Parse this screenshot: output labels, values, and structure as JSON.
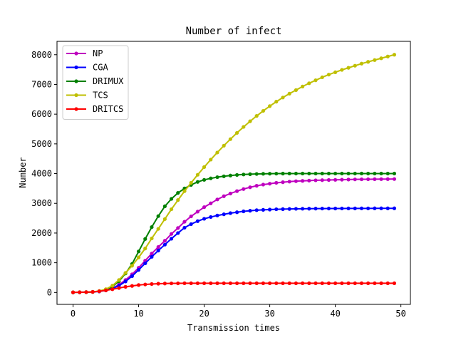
{
  "chart_data": {
    "type": "line",
    "title": "Number of infect",
    "xlabel": "Transmission times",
    "ylabel": "Number",
    "xlim": [
      -2.45,
      51.45
    ],
    "ylim": [
      -400,
      8450
    ],
    "xticks": [
      0,
      10,
      20,
      30,
      40,
      50
    ],
    "yticks": [
      0,
      1000,
      2000,
      3000,
      4000,
      5000,
      6000,
      7000,
      8000
    ],
    "grid": false,
    "legend_position": "top-left",
    "x": [
      0,
      1,
      2,
      3,
      4,
      5,
      6,
      7,
      8,
      9,
      10,
      11,
      12,
      13,
      14,
      15,
      16,
      17,
      18,
      19,
      20,
      21,
      22,
      23,
      24,
      25,
      26,
      27,
      28,
      29,
      30,
      31,
      32,
      33,
      34,
      35,
      36,
      37,
      38,
      39,
      40,
      41,
      42,
      43,
      44,
      45,
      46,
      47,
      48,
      49
    ],
    "series": [
      {
        "name": "NP",
        "color": "#bf00bf",
        "values": [
          5,
          8,
          12,
          20,
          40,
          80,
          150,
          260,
          420,
          610,
          830,
          1070,
          1310,
          1530,
          1740,
          1970,
          2170,
          2380,
          2560,
          2720,
          2870,
          3000,
          3130,
          3240,
          3330,
          3410,
          3480,
          3540,
          3590,
          3630,
          3660,
          3690,
          3710,
          3730,
          3745,
          3755,
          3765,
          3775,
          3780,
          3785,
          3790,
          3795,
          3800,
          3805,
          3808,
          3810,
          3812,
          3814,
          3815,
          3817
        ]
      },
      {
        "name": "CGA",
        "color": "#0000ff",
        "values": [
          5,
          8,
          12,
          18,
          35,
          70,
          130,
          230,
          370,
          550,
          760,
          980,
          1200,
          1410,
          1610,
          1810,
          2000,
          2180,
          2300,
          2400,
          2480,
          2540,
          2590,
          2630,
          2670,
          2700,
          2730,
          2750,
          2770,
          2780,
          2790,
          2800,
          2805,
          2810,
          2815,
          2818,
          2820,
          2822,
          2824,
          2825,
          2826,
          2827,
          2828,
          2829,
          2830,
          2830,
          2831,
          2831,
          2832,
          2832
        ]
      },
      {
        "name": "DRIMUX",
        "color": "#008000",
        "values": [
          5,
          8,
          12,
          20,
          45,
          100,
          200,
          380,
          640,
          960,
          1380,
          1800,
          2200,
          2570,
          2900,
          3150,
          3350,
          3500,
          3620,
          3720,
          3790,
          3840,
          3880,
          3910,
          3935,
          3955,
          3970,
          3980,
          3988,
          3993,
          3997,
          4000,
          4001,
          4002,
          4002,
          4002,
          4002,
          4002,
          4002,
          4002,
          4002,
          4002,
          4002,
          4002,
          4002,
          4002,
          4002,
          4002,
          4002,
          4002
        ]
      },
      {
        "name": "TCS",
        "color": "#bfbf00",
        "values": [
          5,
          8,
          12,
          20,
          50,
          110,
          230,
          420,
          660,
          900,
          1180,
          1480,
          1820,
          2140,
          2470,
          2800,
          3110,
          3410,
          3690,
          3960,
          4220,
          4470,
          4710,
          4940,
          5160,
          5370,
          5570,
          5760,
          5940,
          6110,
          6270,
          6420,
          6560,
          6690,
          6810,
          6930,
          7040,
          7140,
          7240,
          7330,
          7410,
          7490,
          7560,
          7630,
          7700,
          7760,
          7820,
          7880,
          7940,
          8000
        ]
      },
      {
        "name": "DRITCS",
        "color": "#ff0000",
        "values": [
          5,
          8,
          12,
          20,
          40,
          70,
          110,
          150,
          190,
          220,
          250,
          270,
          285,
          295,
          302,
          306,
          308,
          310,
          310,
          311,
          311,
          311,
          311,
          311,
          311,
          311,
          311,
          311,
          311,
          311,
          311,
          311,
          311,
          311,
          311,
          311,
          311,
          311,
          311,
          311,
          311,
          311,
          311,
          311,
          311,
          311,
          311,
          311,
          311,
          311
        ]
      }
    ]
  }
}
